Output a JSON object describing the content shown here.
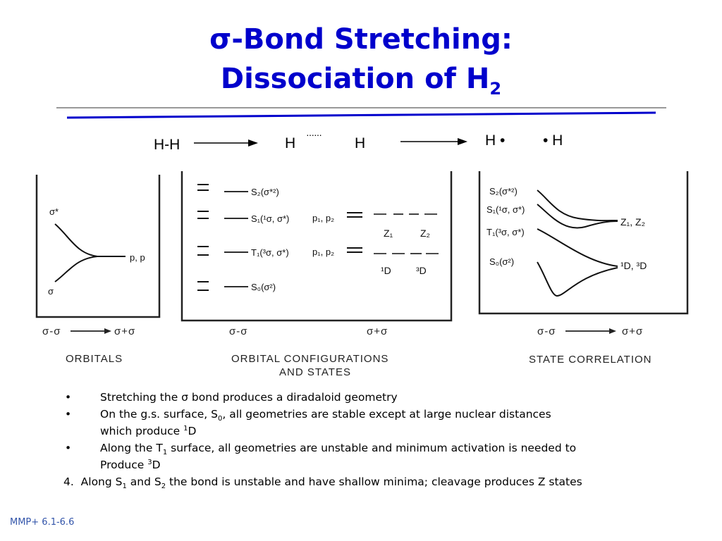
{
  "title": {
    "line1_sigma": "σ",
    "line1_rest": "-Bond Stretching:",
    "line2_main": "Dissociation of H",
    "line2_sub": "2"
  },
  "reaction": {
    "reactant": "H-H",
    "mid_left": "H",
    "mid_dots": "······",
    "mid_right": "H",
    "product_left": "H •",
    "product_right": "• H"
  },
  "diagram": {
    "orbitals": {
      "caption": "ORBITALS",
      "upper_label": "σ*",
      "lower_label": "σ",
      "right_label": "p, p",
      "axis_left": "σ-σ",
      "axis_right": "σ+σ"
    },
    "configurations": {
      "caption_line1": "ORBITAL CONFIGURATIONS",
      "caption_line2": "AND STATES",
      "states": [
        "S₂(σ*²)",
        "S₁(¹σ, σ*)",
        "T₁(³σ, σ*)",
        "S₀(σ²)"
      ],
      "pair_labels": [
        "p₁, p₂",
        "p₁, p₂"
      ],
      "product_labels": [
        "Z₁",
        "Z₂",
        "¹D",
        "³D"
      ],
      "axis_left": "σ-σ",
      "axis_right": "σ+σ"
    },
    "correlation": {
      "caption": "STATE CORRELATION",
      "states": [
        "S₂(σ*²)",
        "S₁(¹σ, σ*)",
        "T₁(³σ, σ*)",
        "S₀(σ²)"
      ],
      "right_upper": "Z₁, Z₂",
      "right_lower": "¹D, ³D",
      "axis_left": "σ-σ",
      "axis_right": "σ+σ"
    }
  },
  "bullets": {
    "marker": "•",
    "b1_pre": "Stretching the ",
    "b1_sigma": "σ",
    "b1_post": " bond produces a diradaloid geometry",
    "b2_pre": "On the g.s. surface, S",
    "b2_sub": "0",
    "b2_post": ", all geometries are stable except at large nuclear distances",
    "b2_cont_pre": "which produce ",
    "b2_cont_sup": "1",
    "b2_cont_post": "D",
    "b3_pre": "Along the T",
    "b3_sub": "1",
    "b3_post": " surface, all geometries are unstable and minimum activation is needed to",
    "b3_cont_pre": "Produce ",
    "b3_cont_sup": "3",
    "b3_cont_post": "D",
    "b4_num": "4.",
    "b4_pre": "Along S",
    "b4_sub1": "1",
    "b4_mid": " and S",
    "b4_sub2": "2",
    "b4_post": " the bond is unstable and have shallow minima; cleavage produces Z states"
  },
  "footer": "MMP+ 6.1-6.6",
  "colors": {
    "title": "#0000cc",
    "rule_blue": "#0000cc",
    "rule_gray": "#999999"
  }
}
